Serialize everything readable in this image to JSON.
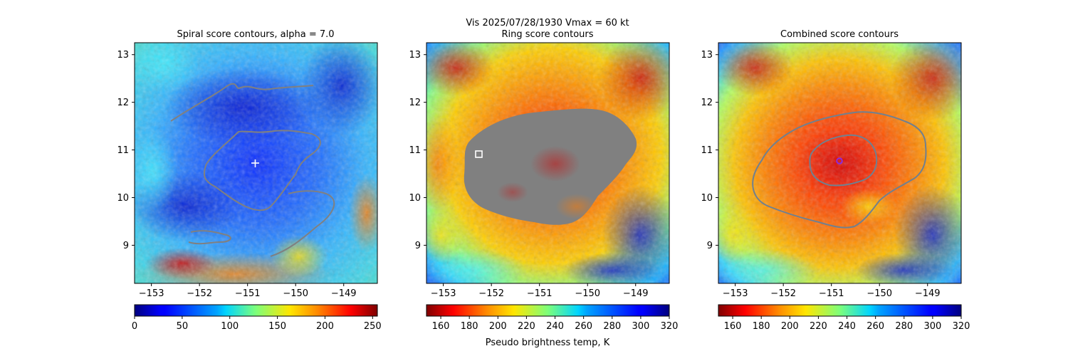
{
  "suptitle": {
    "line1": "Vis  2025/07/28/1930    Vmax = 60 kt"
  },
  "chart_data": [
    {
      "type": "heatmap",
      "title": "Spiral score contours, alpha =  7.0",
      "xlim": [
        -153.35,
        -148.3
      ],
      "ylim": [
        8.2,
        13.25
      ],
      "xticks": [
        -153,
        -152,
        -151,
        -150,
        -149
      ],
      "xtick_labels": [
        "−153",
        "−152",
        "−151",
        "−150",
        "−149"
      ],
      "yticks": [
        9,
        10,
        11,
        12,
        13
      ],
      "ytick_labels": [
        "9",
        "10",
        "11",
        "12",
        "13"
      ],
      "colormap": "jet",
      "colorbar": {
        "range": [
          0,
          255
        ],
        "ticks": [
          0,
          50,
          100,
          150,
          200,
          250
        ],
        "reversed": false,
        "label": ""
      },
      "contour_color": "#808080",
      "marker": {
        "shape": "plus",
        "lon": -150.8,
        "lat": 10.7,
        "color": "#ffffff"
      }
    },
    {
      "type": "heatmap",
      "title": "Ring score contours",
      "xlim": [
        -153.35,
        -148.3
      ],
      "ylim": [
        8.2,
        13.25
      ],
      "xticks": [
        -153,
        -152,
        -151,
        -150,
        -149
      ],
      "xtick_labels": [
        "−153",
        "−152",
        "−151",
        "−150",
        "−149"
      ],
      "yticks": [
        9,
        10,
        11,
        12,
        13
      ],
      "ytick_labels": [
        "9",
        "10",
        "11",
        "12",
        "13"
      ],
      "colormap": "jet_r",
      "colorbar": {
        "range": [
          150,
          320
        ],
        "ticks": [
          160,
          180,
          200,
          220,
          240,
          260,
          280,
          300,
          320
        ],
        "reversed": true,
        "label": "Pseudo brightness temp, K"
      },
      "mask_color": "#808080",
      "marker": {
        "shape": "square",
        "lon": -152.25,
        "lat": 10.88,
        "color": "#ffffff"
      }
    },
    {
      "type": "heatmap",
      "title": "Combined score contours",
      "xlim": [
        -153.35,
        -148.3
      ],
      "ylim": [
        8.2,
        13.25
      ],
      "xticks": [
        -153,
        -152,
        -151,
        -150,
        -149
      ],
      "xtick_labels": [
        "−153",
        "−152",
        "−151",
        "−150",
        "−149"
      ],
      "yticks": [
        9,
        10,
        11,
        12,
        13
      ],
      "ytick_labels": [
        "9",
        "10",
        "11",
        "12",
        "13"
      ],
      "colormap": "jet_r",
      "colorbar": {
        "range": [
          150,
          320
        ],
        "ticks": [
          160,
          180,
          200,
          220,
          240,
          260,
          280,
          300,
          320
        ],
        "reversed": true,
        "label": ""
      },
      "contour_color": "#708090",
      "marker": {
        "shape": "circle",
        "lon": -150.85,
        "lat": 10.75,
        "color": "#8a2be2"
      }
    }
  ]
}
